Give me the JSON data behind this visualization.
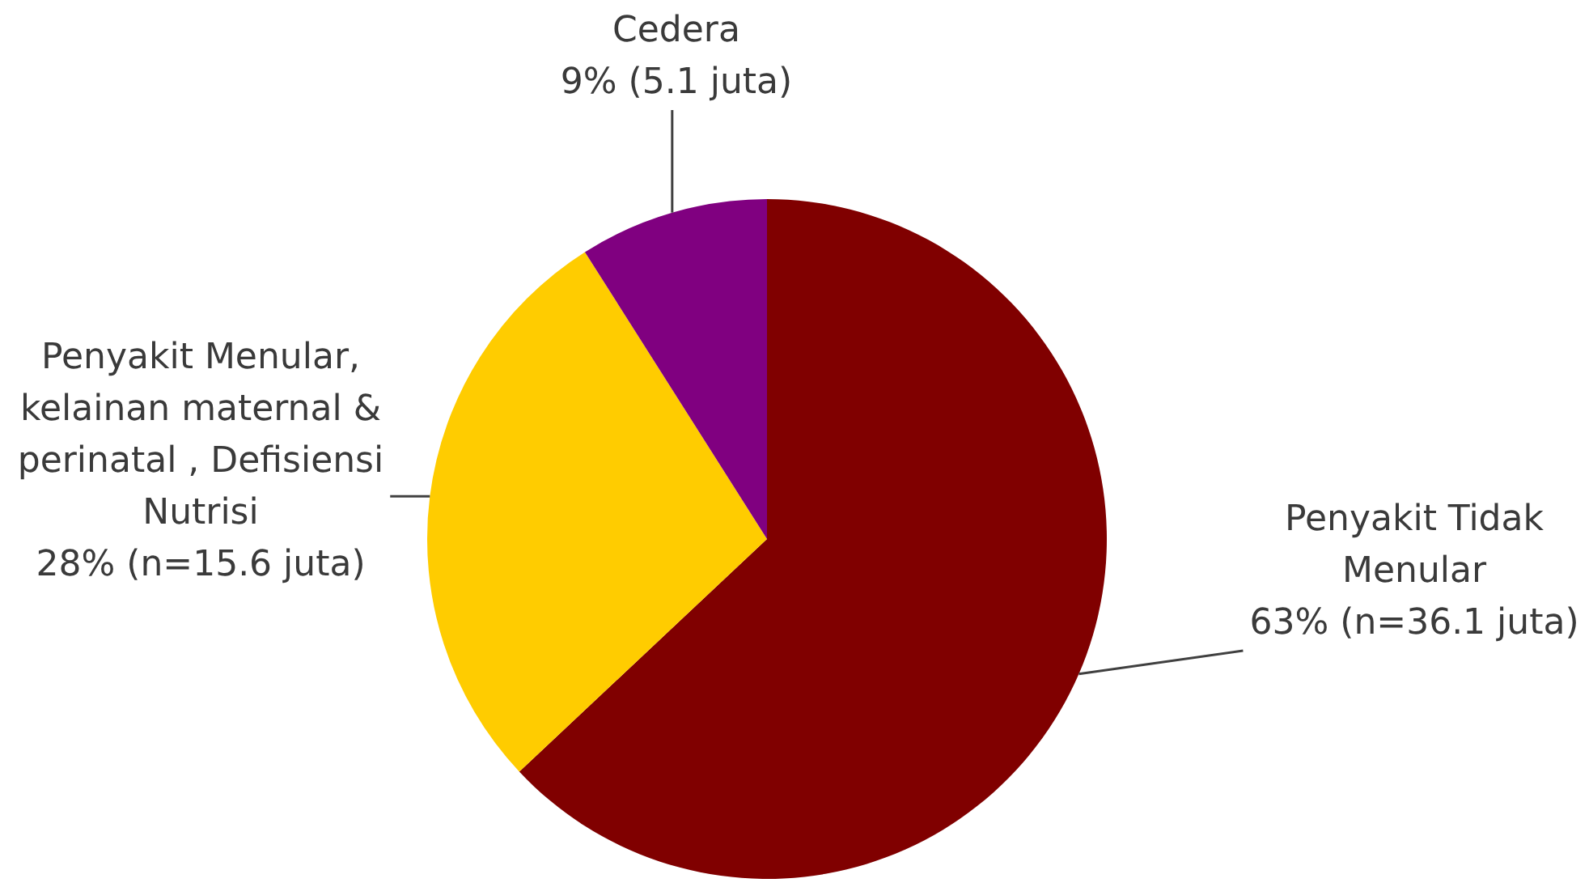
{
  "chart_data": {
    "type": "pie",
    "categories": [
      "Penyakit Tidak Menular",
      "Penyakit Menular, kelainan maternal & perinatal , Defisiensi Nutrisi",
      "Cedera"
    ],
    "values": [
      63,
      28,
      9
    ],
    "value_labels": [
      "63% (n=36.1 juta)",
      "28% (n=15.6 juta)",
      "9% (5.1 juta)"
    ],
    "colors": [
      "#800000",
      "#ffcc00",
      "#800080"
    ]
  }
}
